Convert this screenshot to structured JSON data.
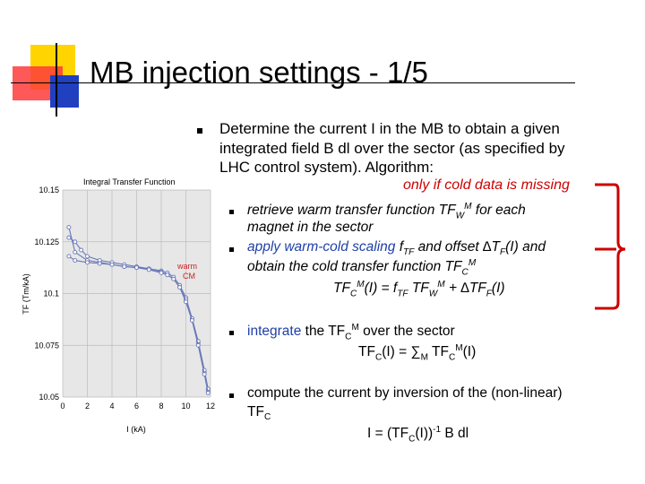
{
  "slide": {
    "title": "MB injection settings - 1/5",
    "main_bullet": {
      "line1": "Determine the current I in the MB to obtain a given",
      "line2": "integrated field B dl over the sector (as specified by",
      "line3": "LHC control system). Algorithm:"
    },
    "note": "only if cold data is missing",
    "sub1": {
      "a": "retrieve warm transfer function TF",
      "a_sub": "W",
      "a_sup": "M",
      "b": " for each",
      "line2": "magnet in the sector"
    },
    "sub2": {
      "a": "apply warm-cold scaling",
      "b": " f",
      "b_sub": "TF",
      "c": " and offset ",
      "delta": "∆",
      "d": "T",
      "d_sub": "F",
      "e": "(I) and",
      "line2a": "obtain the cold transfer function TF",
      "line2_sub": "C",
      "line2_sup": "M",
      "formula": {
        "p1": "TF",
        "p1_sub": "C",
        "p1_sup": "M",
        "p2": "(I) = f",
        "p2_sub": "TF",
        "p3": " TF",
        "p3_sub": "W",
        "p3_sup": "M",
        "p4": " + ",
        "p5": "∆",
        "p6": "TF",
        "p6_sub": "F",
        "p7": "(I)"
      }
    },
    "sub3": {
      "a": "integrate",
      "b": " the TF",
      "b_sub": "C",
      "b_sup": "M",
      "c": " over the sector",
      "formula": {
        "p1": "TF",
        "p1_sub": "C",
        "p2": "(I) = ∑",
        "p2_sub": "M",
        "p3": " TF",
        "p3_sub": "C",
        "p3_sup": "M",
        "p4": "(I)"
      }
    },
    "sub4": {
      "line1": "compute the current by inversion of the (non-linear)",
      "line2": "TF",
      "line2_sub": "C",
      "formula": {
        "p1": "I = (TF",
        "p1_sub": "C",
        "p2": "(I))",
        "p2_sup": "-1",
        "p3": " B dl"
      }
    }
  },
  "chart_data": {
    "type": "line",
    "title": "Integral Transfer Function",
    "xlabel": "I (kA)",
    "ylabel": "TF (Tm/kA)",
    "xlim": [
      0,
      12
    ],
    "ylim": [
      10.05,
      10.15
    ],
    "x_ticks": [
      "0",
      "2",
      "4",
      "6",
      "8",
      "10",
      "12"
    ],
    "y_ticks": [
      "10.05",
      "10.075",
      "10.1",
      "10.125",
      "10.15"
    ],
    "annotation": {
      "line1": "warm",
      "line2": "CM"
    },
    "grid": true,
    "colors": {
      "series": "#6a79b8",
      "annotation": "#cc2222"
    },
    "series": [
      {
        "x": [
          0.5,
          1.0,
          2.0,
          3.0,
          4.0,
          5.0,
          6.0,
          7.0,
          8.0,
          8.5,
          9.0,
          9.5,
          10.0,
          10.5,
          11.0,
          11.5,
          11.8
        ],
        "y": [
          10.132,
          10.12,
          10.116,
          10.115,
          10.114,
          10.113,
          10.1125,
          10.112,
          10.111,
          10.11,
          10.108,
          10.104,
          10.098,
          10.088,
          10.076,
          10.062,
          10.053
        ]
      },
      {
        "x": [
          0.5,
          1.0,
          1.5,
          2.0,
          3.0,
          4.0,
          5.0,
          6.0,
          7.0,
          8.0,
          8.5,
          9.0,
          9.5,
          10.0,
          10.5,
          11.0,
          11.5,
          11.8
        ],
        "y": [
          10.127,
          10.125,
          10.121,
          10.118,
          10.116,
          10.115,
          10.114,
          10.113,
          10.112,
          10.1105,
          10.109,
          10.107,
          10.103,
          10.097,
          10.088,
          10.077,
          10.063,
          10.054
        ]
      },
      {
        "x": [
          0.5,
          1.0,
          2.0,
          3.0,
          4.0,
          5.0,
          6.0,
          7.0,
          8.0,
          8.5,
          9.0,
          9.5,
          10.0,
          10.5,
          11.0,
          11.5,
          11.8
        ],
        "y": [
          10.118,
          10.116,
          10.115,
          10.1145,
          10.114,
          10.113,
          10.1125,
          10.1115,
          10.11,
          10.109,
          10.107,
          10.103,
          10.096,
          10.087,
          10.075,
          10.061,
          10.052
        ]
      }
    ]
  }
}
